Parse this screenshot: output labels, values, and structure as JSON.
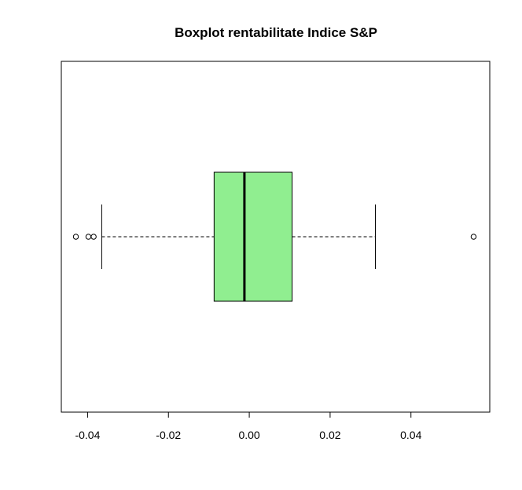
{
  "chart_data": {
    "type": "boxplot",
    "orientation": "horizontal",
    "title": "Boxplot rentabilitate Indice S&P",
    "xlabel": "",
    "ylabel": "",
    "xlim": [
      -0.0465,
      0.0595
    ],
    "x_ticks": [
      -0.04,
      -0.02,
      0.0,
      0.02,
      0.04
    ],
    "x_tick_labels": [
      "-0.04",
      "-0.02",
      "0.00",
      "0.02",
      "0.04"
    ],
    "box": {
      "whisker_low": -0.0365,
      "q1": -0.0087,
      "median": -0.0012,
      "q3": 0.0106,
      "whisker_high": 0.0312
    },
    "outliers": [
      -0.0429,
      -0.0398,
      -0.0385,
      0.0555
    ],
    "box_fill_color": "#90ee90",
    "grid": false,
    "legend": "none"
  }
}
